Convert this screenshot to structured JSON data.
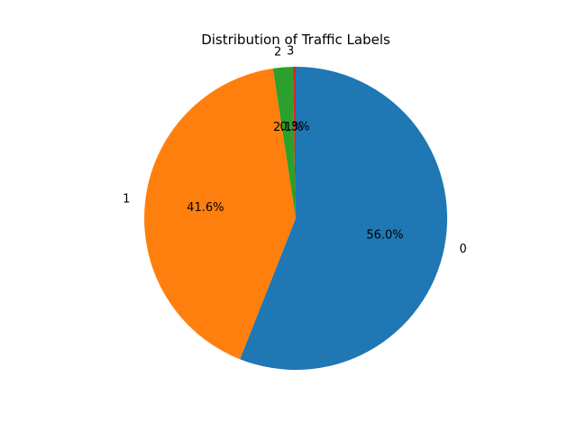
{
  "chart_data": {
    "type": "pie",
    "title": "Distribution of Traffic Labels",
    "start_angle_deg": 90,
    "direction": "clockwise",
    "slices": [
      {
        "label": "0",
        "value": 56.0,
        "pct_text": "56.0%",
        "color": "#1f77b4"
      },
      {
        "label": "1",
        "value": 41.6,
        "pct_text": "41.6%",
        "color": "#ff7f0e"
      },
      {
        "label": "2",
        "value": 2.1,
        "pct_text": "2.1%",
        "color": "#2ca02c"
      },
      {
        "label": "3",
        "value": 0.3,
        "pct_text": "0.3%",
        "color": "#d62728"
      }
    ]
  }
}
